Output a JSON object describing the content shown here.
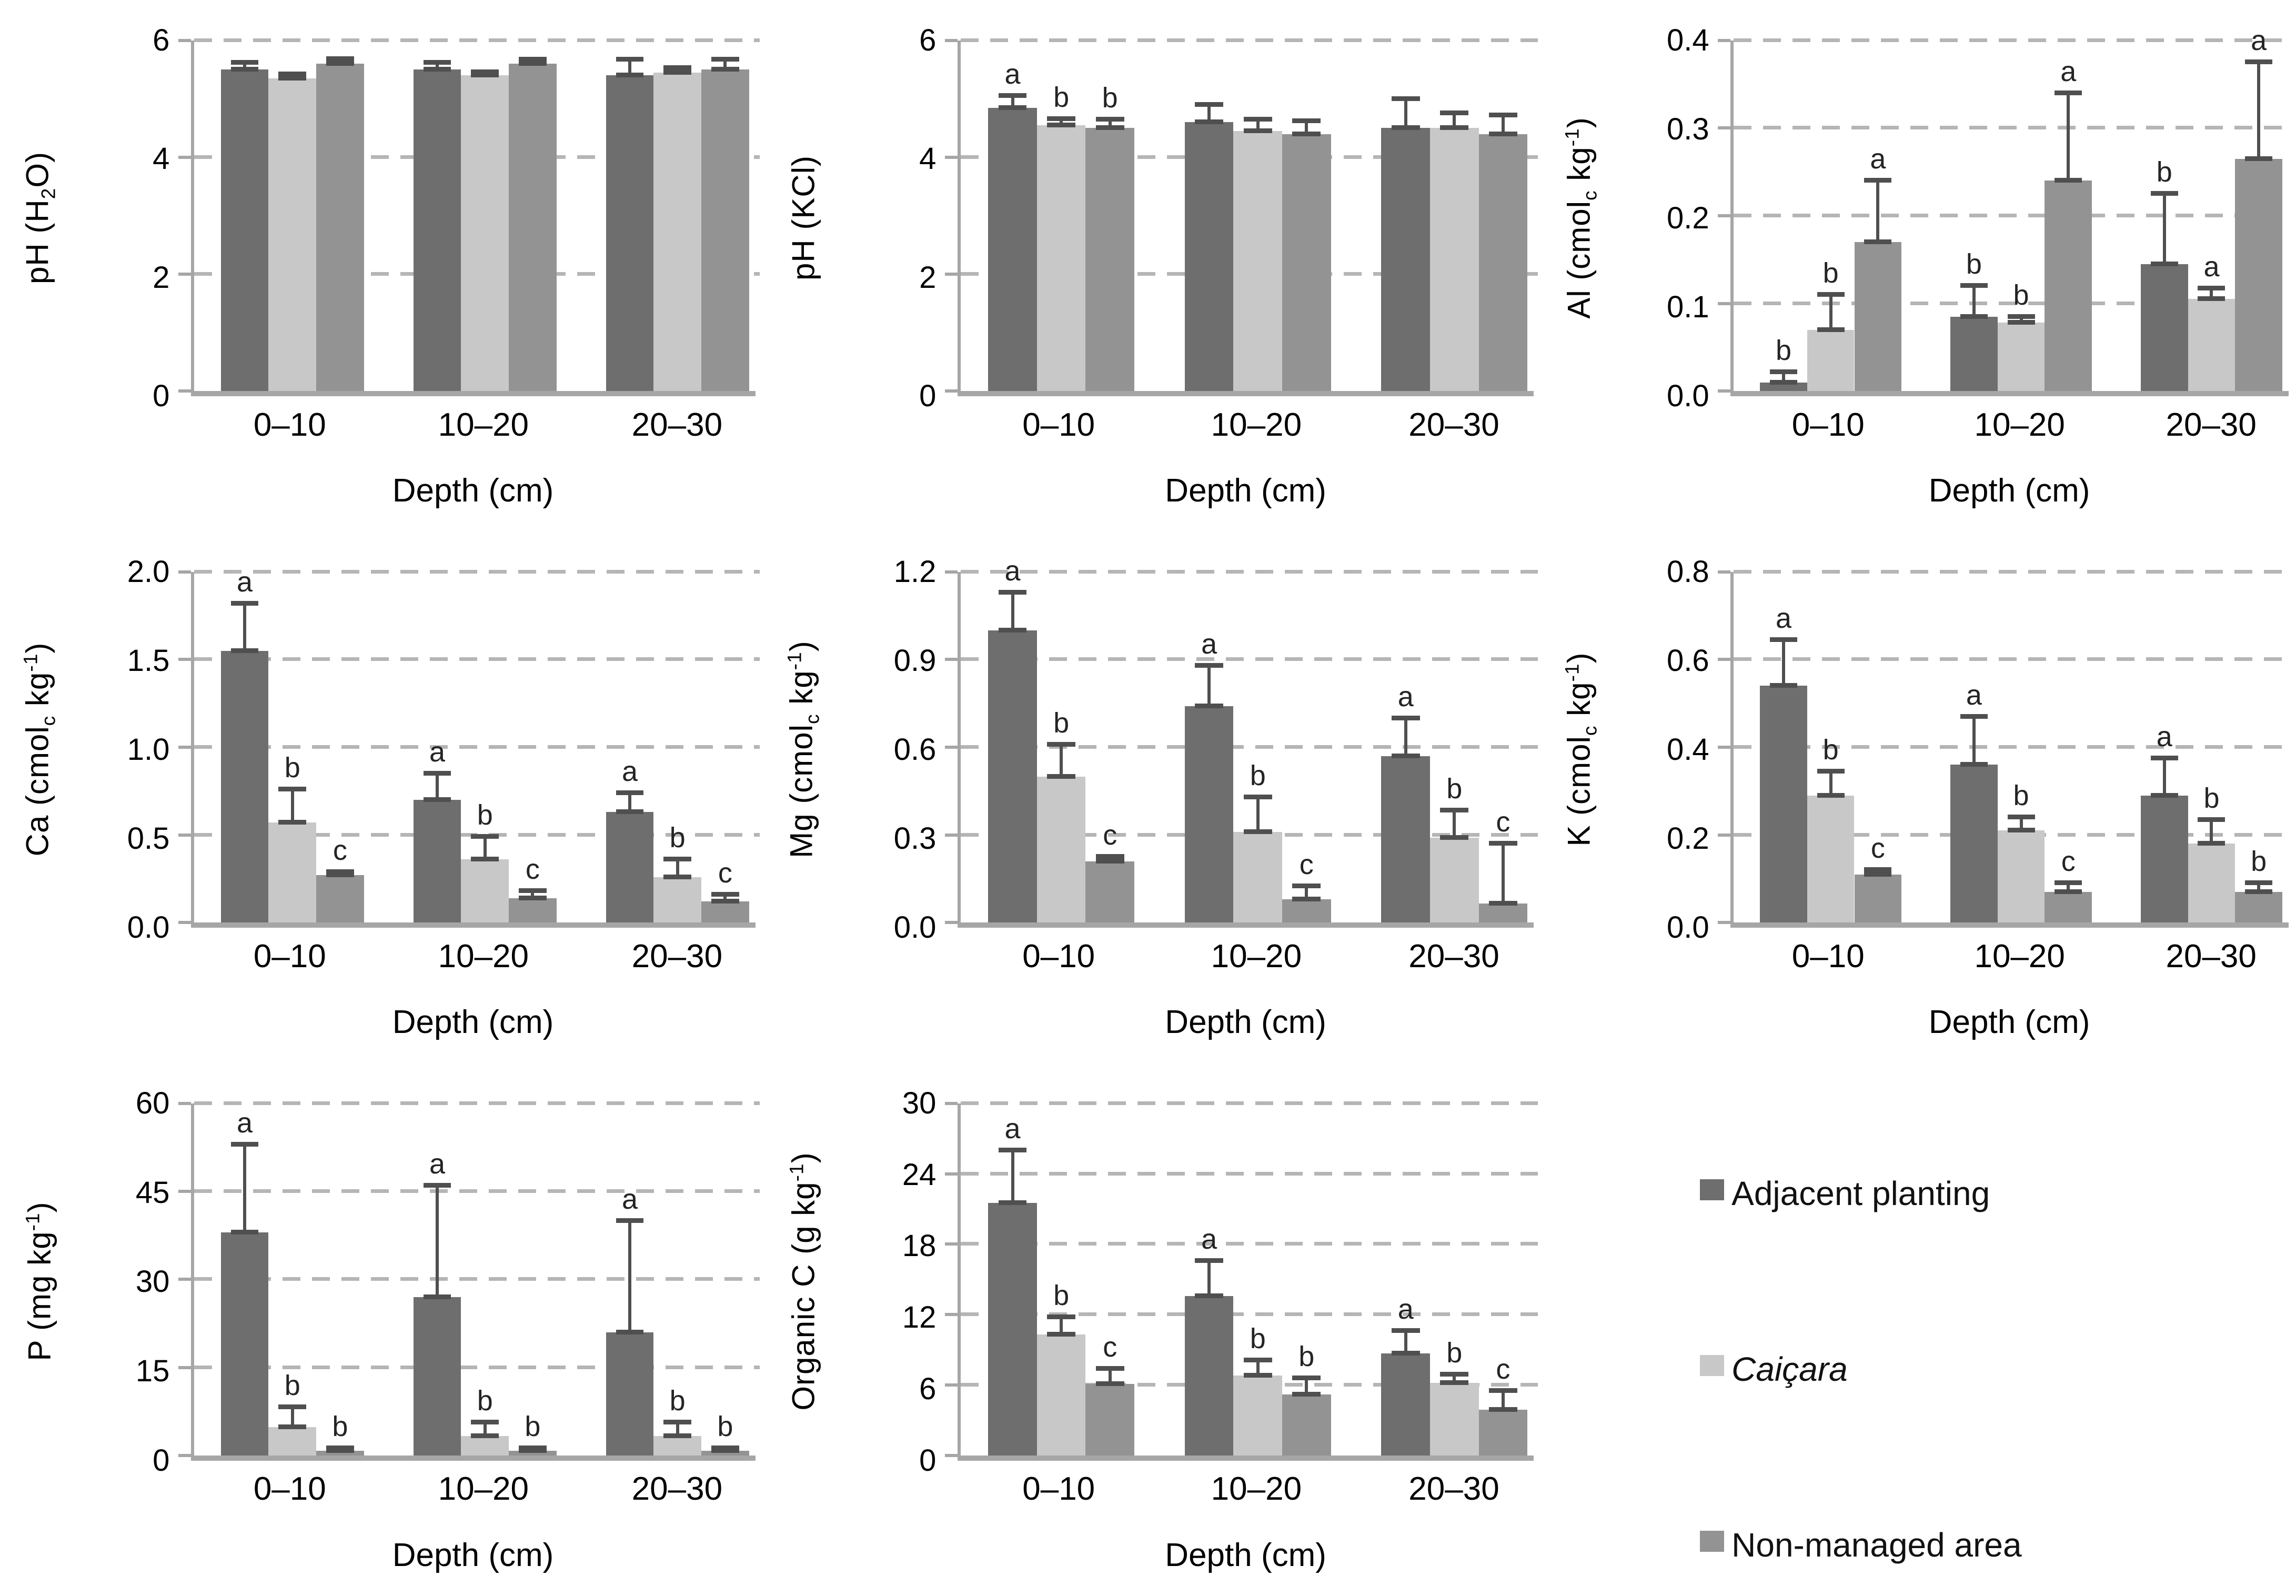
{
  "figure": {
    "background": "#ffffff",
    "series_names": [
      "Adjacent planting",
      "Caiçara",
      "Non-managed area"
    ],
    "series_colors": [
      "#6e6e6e",
      "#c8c8c8",
      "#939393"
    ]
  },
  "legend": {
    "items": [
      {
        "label": "Adjacent planting",
        "color": "#6e6e6e",
        "italic": false
      },
      {
        "label": "Caiçara",
        "color": "#c8c8c8",
        "italic": true
      },
      {
        "label": "Non-managed area",
        "color": "#939393",
        "italic": false
      }
    ]
  },
  "chart_data": [
    {
      "id": "ph-h2o",
      "type": "bar",
      "ylabel_parts": [
        {
          "text": "pH (H"
        },
        {
          "text": "2",
          "sub": true
        },
        {
          "text": "O)"
        }
      ],
      "xlabel": "Depth (cm)",
      "categories": [
        "0–10",
        "10–20",
        "20–30"
      ],
      "series": [
        "Adjacent planting",
        "Caiçara",
        "Non-managed area"
      ],
      "ymax": 6,
      "yticks": [
        {
          "v": 0,
          "label": "0"
        },
        {
          "v": 2,
          "label": "2"
        },
        {
          "v": 4,
          "label": "4"
        },
        {
          "v": 6,
          "label": "6"
        }
      ],
      "groups": [
        {
          "category": "0–10",
          "bars": [
            {
              "value": 5.5,
              "err_top": 5.62,
              "letter": ""
            },
            {
              "value": 5.35,
              "err_top": 5.42,
              "letter": ""
            },
            {
              "value": 5.6,
              "err_top": 5.68,
              "letter": ""
            }
          ]
        },
        {
          "category": "10–20",
          "bars": [
            {
              "value": 5.5,
              "err_top": 5.62,
              "letter": ""
            },
            {
              "value": 5.4,
              "err_top": 5.46,
              "letter": ""
            },
            {
              "value": 5.6,
              "err_top": 5.67,
              "letter": ""
            }
          ]
        },
        {
          "category": "20–30",
          "bars": [
            {
              "value": 5.4,
              "err_top": 5.67,
              "letter": ""
            },
            {
              "value": 5.45,
              "err_top": 5.53,
              "letter": ""
            },
            {
              "value": 5.5,
              "err_top": 5.67,
              "letter": ""
            }
          ]
        }
      ]
    },
    {
      "id": "ph-kcl",
      "type": "bar",
      "ylabel_parts": [
        {
          "text": "pH (KCl)"
        }
      ],
      "xlabel": "Depth (cm)",
      "categories": [
        "0–10",
        "10–20",
        "20–30"
      ],
      "series": [
        "Adjacent planting",
        "Caiçara",
        "Non-managed area"
      ],
      "ymax": 6,
      "yticks": [
        {
          "v": 0,
          "label": "0"
        },
        {
          "v": 2,
          "label": "2"
        },
        {
          "v": 4,
          "label": "4"
        },
        {
          "v": 6,
          "label": "6"
        }
      ],
      "groups": [
        {
          "category": "0–10",
          "bars": [
            {
              "value": 4.85,
              "err_top": 5.05,
              "letter": "a"
            },
            {
              "value": 4.55,
              "err_top": 4.66,
              "letter": "b"
            },
            {
              "value": 4.5,
              "err_top": 4.65,
              "letter": "b"
            }
          ]
        },
        {
          "category": "10–20",
          "bars": [
            {
              "value": 4.6,
              "err_top": 4.9,
              "letter": ""
            },
            {
              "value": 4.45,
              "err_top": 4.65,
              "letter": ""
            },
            {
              "value": 4.4,
              "err_top": 4.62,
              "letter": ""
            }
          ]
        },
        {
          "category": "20–30",
          "bars": [
            {
              "value": 4.5,
              "err_top": 5.0,
              "letter": ""
            },
            {
              "value": 4.5,
              "err_top": 4.76,
              "letter": ""
            },
            {
              "value": 4.4,
              "err_top": 4.72,
              "letter": ""
            }
          ]
        }
      ]
    },
    {
      "id": "al",
      "type": "bar",
      "ylabel_parts": [
        {
          "text": "Al (cmol"
        },
        {
          "text": "c",
          "sub": true
        },
        {
          "text": " kg"
        },
        {
          "text": "-1",
          "sup": true
        },
        {
          "text": ")"
        }
      ],
      "xlabel": "Depth (cm)",
      "categories": [
        "0–10",
        "10–20",
        "20–30"
      ],
      "series": [
        "Adjacent planting",
        "Caiçara",
        "Non-managed area"
      ],
      "ymax": 0.4,
      "yticks": [
        {
          "v": 0,
          "label": "0.0"
        },
        {
          "v": 0.1,
          "label": "0.1"
        },
        {
          "v": 0.2,
          "label": "0.2"
        },
        {
          "v": 0.3,
          "label": "0.3"
        },
        {
          "v": 0.4,
          "label": "0.4"
        }
      ],
      "groups": [
        {
          "category": "0–10",
          "bars": [
            {
              "value": 0.01,
              "err_top": 0.022,
              "letter": "b"
            },
            {
              "value": 0.07,
              "err_top": 0.11,
              "letter": "b"
            },
            {
              "value": 0.17,
              "err_top": 0.24,
              "letter": "a"
            }
          ]
        },
        {
          "category": "10–20",
          "bars": [
            {
              "value": 0.085,
              "err_top": 0.12,
              "letter": "b"
            },
            {
              "value": 0.078,
              "err_top": 0.085,
              "letter": "b"
            },
            {
              "value": 0.24,
              "err_top": 0.34,
              "letter": "a"
            }
          ]
        },
        {
          "category": "20–30",
          "bars": [
            {
              "value": 0.145,
              "err_top": 0.225,
              "letter": "b"
            },
            {
              "value": 0.105,
              "err_top": 0.117,
              "letter": "a"
            },
            {
              "value": 0.265,
              "err_top": 0.375,
              "letter": "a"
            }
          ]
        }
      ]
    },
    {
      "id": "ca",
      "type": "bar",
      "ylabel_parts": [
        {
          "text": "Ca (cmol"
        },
        {
          "text": "c",
          "sub": true
        },
        {
          "text": " kg"
        },
        {
          "text": "-1",
          "sup": true
        },
        {
          "text": ")"
        }
      ],
      "xlabel": "Depth (cm)",
      "categories": [
        "0–10",
        "10–20",
        "20–30"
      ],
      "series": [
        "Adjacent planting",
        "Caiçara",
        "Non-managed area"
      ],
      "ymax": 2.0,
      "yticks": [
        {
          "v": 0,
          "label": "0.0"
        },
        {
          "v": 0.5,
          "label": "0.5"
        },
        {
          "v": 1.0,
          "label": "1.0"
        },
        {
          "v": 1.5,
          "label": "1.5"
        },
        {
          "v": 2.0,
          "label": "2.0"
        }
      ],
      "groups": [
        {
          "category": "0–10",
          "bars": [
            {
              "value": 1.55,
              "err_top": 1.82,
              "letter": "a"
            },
            {
              "value": 0.57,
              "err_top": 0.76,
              "letter": "b"
            },
            {
              "value": 0.27,
              "err_top": 0.29,
              "letter": "c"
            }
          ]
        },
        {
          "category": "10–20",
          "bars": [
            {
              "value": 0.7,
              "err_top": 0.85,
              "letter": "a"
            },
            {
              "value": 0.36,
              "err_top": 0.49,
              "letter": "b"
            },
            {
              "value": 0.14,
              "err_top": 0.18,
              "letter": "c"
            }
          ]
        },
        {
          "category": "20–30",
          "bars": [
            {
              "value": 0.63,
              "err_top": 0.74,
              "letter": "a"
            },
            {
              "value": 0.26,
              "err_top": 0.36,
              "letter": "b"
            },
            {
              "value": 0.12,
              "err_top": 0.16,
              "letter": "c"
            }
          ]
        }
      ]
    },
    {
      "id": "mg",
      "type": "bar",
      "ylabel_parts": [
        {
          "text": "Mg (cmol"
        },
        {
          "text": "c",
          "sub": true
        },
        {
          "text": " kg"
        },
        {
          "text": "-1",
          "sup": true
        },
        {
          "text": ")"
        }
      ],
      "xlabel": "Depth (cm)",
      "categories": [
        "0–10",
        "10–20",
        "20–30"
      ],
      "series": [
        "Adjacent planting",
        "Caiçara",
        "Non-managed area"
      ],
      "ymax": 1.2,
      "yticks": [
        {
          "v": 0,
          "label": "0.0"
        },
        {
          "v": 0.3,
          "label": "0.3"
        },
        {
          "v": 0.6,
          "label": "0.6"
        },
        {
          "v": 0.9,
          "label": "0.9"
        },
        {
          "v": 1.2,
          "label": "1.2"
        }
      ],
      "groups": [
        {
          "category": "0–10",
          "bars": [
            {
              "value": 1.0,
              "err_top": 1.13,
              "letter": "a"
            },
            {
              "value": 0.5,
              "err_top": 0.61,
              "letter": "b"
            },
            {
              "value": 0.21,
              "err_top": 0.225,
              "letter": "c"
            }
          ]
        },
        {
          "category": "10–20",
          "bars": [
            {
              "value": 0.74,
              "err_top": 0.88,
              "letter": "a"
            },
            {
              "value": 0.31,
              "err_top": 0.43,
              "letter": "b"
            },
            {
              "value": 0.08,
              "err_top": 0.125,
              "letter": "c"
            }
          ]
        },
        {
          "category": "20–30",
          "bars": [
            {
              "value": 0.57,
              "err_top": 0.7,
              "letter": "a"
            },
            {
              "value": 0.29,
              "err_top": 0.385,
              "letter": "b"
            },
            {
              "value": 0.065,
              "err_top": 0.27,
              "letter": "c"
            }
          ]
        }
      ]
    },
    {
      "id": "k",
      "type": "bar",
      "ylabel_parts": [
        {
          "text": "K (cmol"
        },
        {
          "text": "c",
          "sub": true
        },
        {
          "text": " kg"
        },
        {
          "text": "-1",
          "sup": true
        },
        {
          "text": ")"
        }
      ],
      "xlabel": "Depth (cm)",
      "categories": [
        "0–10",
        "10–20",
        "20–30"
      ],
      "series": [
        "Adjacent planting",
        "Caiçara",
        "Non-managed area"
      ],
      "ymax": 0.8,
      "yticks": [
        {
          "v": 0,
          "label": "0.0"
        },
        {
          "v": 0.2,
          "label": "0.2"
        },
        {
          "v": 0.4,
          "label": "0.4"
        },
        {
          "v": 0.6,
          "label": "0.6"
        },
        {
          "v": 0.8,
          "label": "0.8"
        }
      ],
      "groups": [
        {
          "category": "0–10",
          "bars": [
            {
              "value": 0.54,
              "err_top": 0.645,
              "letter": "a"
            },
            {
              "value": 0.29,
              "err_top": 0.345,
              "letter": "b"
            },
            {
              "value": 0.11,
              "err_top": 0.12,
              "letter": "c"
            }
          ]
        },
        {
          "category": "10–20",
          "bars": [
            {
              "value": 0.36,
              "err_top": 0.47,
              "letter": "a"
            },
            {
              "value": 0.21,
              "err_top": 0.24,
              "letter": "b"
            },
            {
              "value": 0.07,
              "err_top": 0.09,
              "letter": "c"
            }
          ]
        },
        {
          "category": "20–30",
          "bars": [
            {
              "value": 0.29,
              "err_top": 0.375,
              "letter": "a"
            },
            {
              "value": 0.18,
              "err_top": 0.235,
              "letter": "b"
            },
            {
              "value": 0.07,
              "err_top": 0.09,
              "letter": "b"
            }
          ]
        }
      ]
    },
    {
      "id": "p",
      "type": "bar",
      "ylabel_parts": [
        {
          "text": "P (mg kg"
        },
        {
          "text": "-1",
          "sup": true
        },
        {
          "text": ")"
        }
      ],
      "xlabel": "Depth (cm)",
      "categories": [
        "0–10",
        "10–20",
        "20–30"
      ],
      "series": [
        "Adjacent planting",
        "Caiçara",
        "Non-managed area"
      ],
      "ymax": 60,
      "yticks": [
        {
          "v": 0,
          "label": "0"
        },
        {
          "v": 15,
          "label": "15"
        },
        {
          "v": 30,
          "label": "30"
        },
        {
          "v": 45,
          "label": "45"
        },
        {
          "v": 60,
          "label": "60"
        }
      ],
      "groups": [
        {
          "category": "0–10",
          "bars": [
            {
              "value": 38,
              "err_top": 53,
              "letter": "a"
            },
            {
              "value": 4.8,
              "err_top": 8.2,
              "letter": "b"
            },
            {
              "value": 0.8,
              "err_top": 1.2,
              "letter": "b"
            }
          ]
        },
        {
          "category": "10–20",
          "bars": [
            {
              "value": 27,
              "err_top": 46,
              "letter": "a"
            },
            {
              "value": 3.3,
              "err_top": 5.6,
              "letter": "b"
            },
            {
              "value": 0.8,
              "err_top": 1.2,
              "letter": "b"
            }
          ]
        },
        {
          "category": "20–30",
          "bars": [
            {
              "value": 21,
              "err_top": 40,
              "letter": "a"
            },
            {
              "value": 3.3,
              "err_top": 5.6,
              "letter": "b"
            },
            {
              "value": 0.8,
              "err_top": 1.2,
              "letter": "b"
            }
          ]
        }
      ]
    },
    {
      "id": "organic-c",
      "type": "bar",
      "ylabel_parts": [
        {
          "text": "Organic C (g kg"
        },
        {
          "text": "-1",
          "sup": true
        },
        {
          "text": ")"
        }
      ],
      "xlabel": "Depth (cm)",
      "categories": [
        "0–10",
        "10–20",
        "20–30"
      ],
      "series": [
        "Adjacent planting",
        "Caiçara",
        "Non-managed area"
      ],
      "ymax": 30,
      "yticks": [
        {
          "v": 0,
          "label": "0"
        },
        {
          "v": 6,
          "label": "6"
        },
        {
          "v": 12,
          "label": "12"
        },
        {
          "v": 18,
          "label": "18"
        },
        {
          "v": 24,
          "label": "24"
        },
        {
          "v": 30,
          "label": "30"
        }
      ],
      "groups": [
        {
          "category": "0–10",
          "bars": [
            {
              "value": 21.5,
              "err_top": 26,
              "letter": "a"
            },
            {
              "value": 10.3,
              "err_top": 11.8,
              "letter": "b"
            },
            {
              "value": 6.1,
              "err_top": 7.4,
              "letter": "c"
            }
          ]
        },
        {
          "category": "10–20",
          "bars": [
            {
              "value": 13.6,
              "err_top": 16.6,
              "letter": "a"
            },
            {
              "value": 6.8,
              "err_top": 8.1,
              "letter": "b"
            },
            {
              "value": 5.2,
              "err_top": 6.6,
              "letter": "b"
            }
          ]
        },
        {
          "category": "20–30",
          "bars": [
            {
              "value": 8.7,
              "err_top": 10.6,
              "letter": "a"
            },
            {
              "value": 6.2,
              "err_top": 6.9,
              "letter": "b"
            },
            {
              "value": 3.9,
              "err_top": 5.5,
              "letter": "c"
            }
          ]
        }
      ]
    }
  ]
}
